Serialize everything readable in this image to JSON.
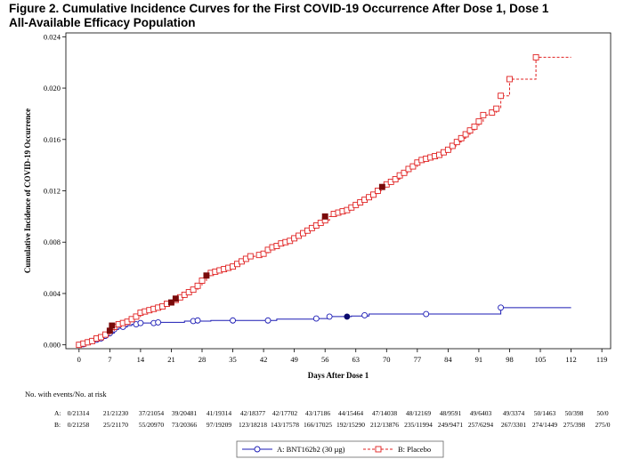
{
  "figure": {
    "title_line1": "Figure 2. Cumulative Incidence Curves for the First COVID-19 Occurrence After Dose 1, Dose 1",
    "title_line2": "All-Available Efficacy Population"
  },
  "chart_data": {
    "type": "line",
    "xlabel": "Days After Dose 1",
    "ylabel": "Cumulative Incidence of COVID-19 Occurrence",
    "xlim": [
      -3,
      121
    ],
    "ylim": [
      -0.0003,
      0.0243
    ],
    "x_ticks": [
      0,
      7,
      14,
      21,
      28,
      35,
      42,
      49,
      56,
      63,
      70,
      77,
      84,
      91,
      98,
      105,
      112,
      119
    ],
    "y_ticks": [
      0.0,
      0.004,
      0.008,
      0.012,
      0.016,
      0.02,
      0.024
    ],
    "y_tick_labels": [
      "0.000",
      "0.004",
      "0.008",
      "0.012",
      "0.016",
      "0.020",
      "0.024"
    ],
    "series": [
      {
        "name": "A: BNT162b2 (30 µg)",
        "color": "#1a1ab4",
        "line_style": "solid",
        "marker": "circle",
        "end_x": 112,
        "steps": [
          [
            0,
            0.0
          ],
          [
            1,
            5e-05
          ],
          [
            2,
            0.0002
          ],
          [
            3,
            0.0003
          ],
          [
            4,
            0.0004
          ],
          [
            5,
            0.0005
          ],
          [
            6,
            0.0007
          ],
          [
            7,
            0.0009
          ],
          [
            8,
            0.0012
          ],
          [
            9,
            0.0013
          ],
          [
            10,
            0.0014
          ],
          [
            11,
            0.0015
          ],
          [
            12,
            0.0016
          ],
          [
            13,
            0.0017
          ],
          [
            15,
            0.0017
          ],
          [
            17,
            0.00175
          ],
          [
            24,
            0.00185
          ],
          [
            30,
            0.0019
          ],
          [
            45,
            0.002
          ],
          [
            54,
            0.00205
          ],
          [
            57,
            0.0022
          ],
          [
            62,
            0.00225
          ],
          [
            66,
            0.0024
          ],
          [
            96,
            0.0029
          ]
        ],
        "markers": [
          [
            0,
            0.0
          ],
          [
            1,
            5e-05
          ],
          [
            2,
            0.0002
          ],
          [
            3,
            0.0003
          ],
          [
            4,
            0.0004
          ],
          [
            5,
            0.0005
          ],
          [
            6,
            0.0007
          ],
          [
            7,
            0.0009
          ],
          [
            8,
            0.0012
          ],
          [
            10,
            0.0014
          ],
          [
            13,
            0.0016
          ],
          [
            14,
            0.0017
          ],
          [
            17,
            0.0017
          ],
          [
            18,
            0.00175
          ],
          [
            26,
            0.00185
          ],
          [
            27,
            0.0019
          ],
          [
            35,
            0.0019
          ],
          [
            43,
            0.0019
          ],
          [
            54,
            0.00205
          ],
          [
            57,
            0.0022
          ],
          [
            65,
            0.0023
          ],
          [
            79,
            0.0024
          ],
          [
            96,
            0.0029
          ]
        ],
        "filled_markers": [
          [
            61,
            0.0022
          ]
        ]
      },
      {
        "name": "B: Placebo",
        "color": "#e02020",
        "line_style": "dashed",
        "marker": "square",
        "end_x": 112,
        "steps": [
          [
            0,
            0.0
          ],
          [
            1,
            0.0001
          ],
          [
            2,
            0.0002
          ],
          [
            3,
            0.0003
          ],
          [
            4,
            0.0005
          ],
          [
            5,
            0.0006
          ],
          [
            6,
            0.0008
          ],
          [
            7,
            0.0011
          ],
          [
            8,
            0.0014
          ],
          [
            9,
            0.0016
          ],
          [
            10,
            0.0017
          ],
          [
            11,
            0.0018
          ],
          [
            12,
            0.002
          ],
          [
            13,
            0.0022
          ],
          [
            14,
            0.0025
          ],
          [
            15,
            0.0026
          ],
          [
            16,
            0.0027
          ],
          [
            17,
            0.0028
          ],
          [
            18,
            0.0029
          ],
          [
            19,
            0.003
          ],
          [
            20,
            0.0032
          ],
          [
            21,
            0.0033
          ],
          [
            22,
            0.0035
          ],
          [
            23,
            0.0037
          ],
          [
            24,
            0.0039
          ],
          [
            25,
            0.0041
          ],
          [
            26,
            0.0043
          ],
          [
            27,
            0.0046
          ],
          [
            28,
            0.005
          ],
          [
            29,
            0.0054
          ],
          [
            30,
            0.0056
          ],
          [
            31,
            0.0057
          ],
          [
            32,
            0.0058
          ],
          [
            33,
            0.0059
          ],
          [
            34,
            0.006
          ],
          [
            35,
            0.0061
          ],
          [
            36,
            0.0063
          ],
          [
            37,
            0.0065
          ],
          [
            38,
            0.0067
          ],
          [
            39,
            0.0069
          ],
          [
            41,
            0.007
          ],
          [
            42,
            0.0071
          ],
          [
            43,
            0.0074
          ],
          [
            44,
            0.0076
          ],
          [
            45,
            0.0077
          ],
          [
            46,
            0.0079
          ],
          [
            47,
            0.008
          ],
          [
            48,
            0.0081
          ],
          [
            49,
            0.0083
          ],
          [
            50,
            0.0085
          ],
          [
            51,
            0.0087
          ],
          [
            52,
            0.0089
          ],
          [
            53,
            0.0091
          ],
          [
            54,
            0.0093
          ],
          [
            55,
            0.0095
          ],
          [
            56,
            0.0097
          ],
          [
            57,
            0.01
          ],
          [
            58,
            0.0102
          ],
          [
            59,
            0.0103
          ],
          [
            60,
            0.0104
          ],
          [
            61,
            0.0105
          ],
          [
            62,
            0.0107
          ],
          [
            63,
            0.0109
          ],
          [
            64,
            0.0111
          ],
          [
            65,
            0.0113
          ],
          [
            66,
            0.0115
          ],
          [
            67,
            0.0117
          ],
          [
            68,
            0.012
          ],
          [
            69,
            0.0123
          ],
          [
            70,
            0.0125
          ],
          [
            71,
            0.0127
          ],
          [
            72,
            0.0129
          ],
          [
            73,
            0.0132
          ],
          [
            74,
            0.0134
          ],
          [
            75,
            0.0137
          ],
          [
            76,
            0.0139
          ],
          [
            77,
            0.0142
          ],
          [
            78,
            0.0144
          ],
          [
            79,
            0.0145
          ],
          [
            80,
            0.0146
          ],
          [
            81,
            0.0147
          ],
          [
            82,
            0.0148
          ],
          [
            83,
            0.015
          ],
          [
            84,
            0.0152
          ],
          [
            85,
            0.0155
          ],
          [
            86,
            0.0158
          ],
          [
            87,
            0.0161
          ],
          [
            88,
            0.0164
          ],
          [
            89,
            0.0167
          ],
          [
            90,
            0.017
          ],
          [
            91,
            0.0174
          ],
          [
            92,
            0.0179
          ],
          [
            93,
            0.018
          ],
          [
            94,
            0.0181
          ],
          [
            95,
            0.0184
          ],
          [
            96,
            0.0194
          ],
          [
            98,
            0.0207
          ],
          [
            104,
            0.0224
          ]
        ],
        "markers": [
          [
            0,
            0.0
          ],
          [
            1,
            0.0001
          ],
          [
            2,
            0.0002
          ],
          [
            3,
            0.0003
          ],
          [
            4,
            0.0005
          ],
          [
            5,
            0.0006
          ],
          [
            6,
            0.0008
          ],
          [
            8,
            0.0014
          ],
          [
            9,
            0.0016
          ],
          [
            10,
            0.0017
          ],
          [
            11,
            0.0018
          ],
          [
            12,
            0.002
          ],
          [
            13,
            0.0022
          ],
          [
            14,
            0.0025
          ],
          [
            15,
            0.0026
          ],
          [
            16,
            0.0027
          ],
          [
            17,
            0.0028
          ],
          [
            18,
            0.0029
          ],
          [
            19,
            0.003
          ],
          [
            20,
            0.0032
          ],
          [
            22,
            0.0035
          ],
          [
            23,
            0.0037
          ],
          [
            24,
            0.0039
          ],
          [
            25,
            0.0041
          ],
          [
            26,
            0.0043
          ],
          [
            27,
            0.0046
          ],
          [
            28,
            0.005
          ],
          [
            30,
            0.0056
          ],
          [
            31,
            0.0057
          ],
          [
            32,
            0.0058
          ],
          [
            33,
            0.0059
          ],
          [
            34,
            0.006
          ],
          [
            35,
            0.0061
          ],
          [
            36,
            0.0063
          ],
          [
            37,
            0.0065
          ],
          [
            38,
            0.0067
          ],
          [
            39,
            0.0069
          ],
          [
            41,
            0.007
          ],
          [
            42,
            0.0071
          ],
          [
            43,
            0.0074
          ],
          [
            44,
            0.0076
          ],
          [
            45,
            0.0077
          ],
          [
            46,
            0.0079
          ],
          [
            47,
            0.008
          ],
          [
            48,
            0.0081
          ],
          [
            49,
            0.0083
          ],
          [
            50,
            0.0085
          ],
          [
            51,
            0.0087
          ],
          [
            52,
            0.0089
          ],
          [
            53,
            0.0091
          ],
          [
            54,
            0.0093
          ],
          [
            55,
            0.0095
          ],
          [
            56,
            0.0097
          ],
          [
            58,
            0.0102
          ],
          [
            59,
            0.0103
          ],
          [
            60,
            0.0104
          ],
          [
            61,
            0.0105
          ],
          [
            62,
            0.0107
          ],
          [
            63,
            0.0109
          ],
          [
            64,
            0.0111
          ],
          [
            65,
            0.0113
          ],
          [
            66,
            0.0115
          ],
          [
            67,
            0.0117
          ],
          [
            68,
            0.012
          ],
          [
            70,
            0.0125
          ],
          [
            71,
            0.0127
          ],
          [
            72,
            0.0129
          ],
          [
            73,
            0.0132
          ],
          [
            74,
            0.0134
          ],
          [
            75,
            0.0137
          ],
          [
            76,
            0.0139
          ],
          [
            77,
            0.0142
          ],
          [
            78,
            0.0144
          ],
          [
            79,
            0.0145
          ],
          [
            80,
            0.0146
          ],
          [
            81,
            0.0147
          ],
          [
            82,
            0.0148
          ],
          [
            83,
            0.015
          ],
          [
            84,
            0.0152
          ],
          [
            85,
            0.0155
          ],
          [
            86,
            0.0158
          ],
          [
            87,
            0.0161
          ],
          [
            88,
            0.0164
          ],
          [
            89,
            0.0167
          ],
          [
            90,
            0.017
          ],
          [
            91,
            0.0174
          ],
          [
            92,
            0.0179
          ],
          [
            94,
            0.0181
          ],
          [
            95,
            0.0184
          ],
          [
            96,
            0.0194
          ],
          [
            98,
            0.0207
          ],
          [
            104,
            0.0224
          ]
        ],
        "filled_markers": [
          [
            7,
            0.0011
          ],
          [
            7.5,
            0.0015
          ],
          [
            21,
            0.0033
          ],
          [
            22,
            0.0036
          ],
          [
            29,
            0.0054
          ],
          [
            56,
            0.01
          ],
          [
            69,
            0.0123
          ]
        ]
      }
    ],
    "risk_table": {
      "title": "No. with events/No. at risk",
      "rows": [
        {
          "label": "A:",
          "values": [
            "0/21314",
            "21/21230",
            "37/21054",
            "39/20481",
            "41/19314",
            "42/18377",
            "42/17702",
            "43/17186",
            "44/15464",
            "47/14038",
            "48/12169",
            "48/9591",
            "49/6403",
            "49/3374",
            "50/1463",
            "50/398",
            "50/0"
          ]
        },
        {
          "label": "B:",
          "values": [
            "0/21258",
            "25/21170",
            "55/20970",
            "73/20366",
            "97/19209",
            "123/18218",
            "143/17578",
            "166/17025",
            "192/15290",
            "212/13876",
            "235/11994",
            "249/9471",
            "257/6294",
            "267/3301",
            "274/1449",
            "275/398",
            "275/0"
          ]
        }
      ]
    },
    "legend": {
      "placement": "bottom-center",
      "items": [
        "A: BNT162b2 (30 µg)",
        "B: Placebo"
      ]
    }
  }
}
